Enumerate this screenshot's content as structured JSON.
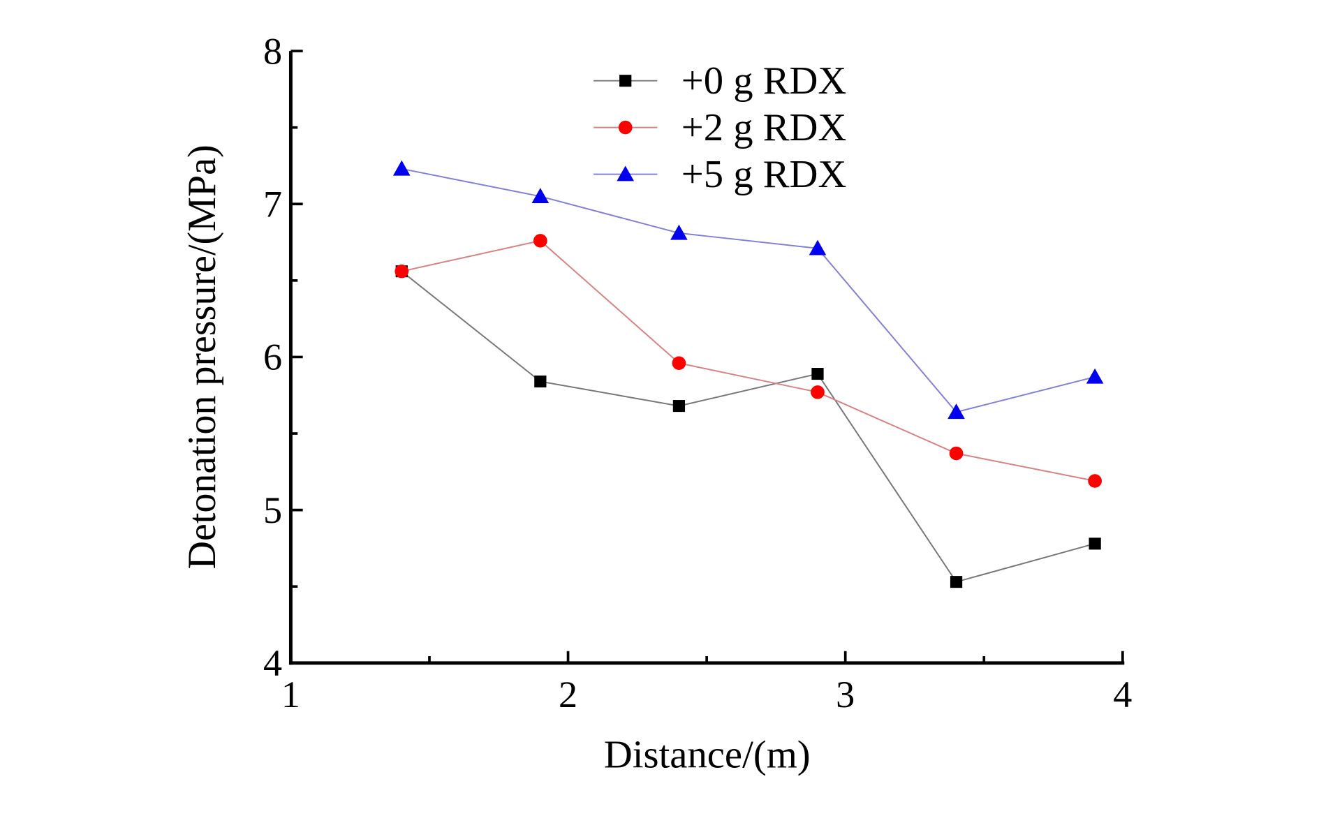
{
  "chart_data": {
    "type": "line",
    "title": "",
    "xlabel": "Distance/(m)",
    "ylabel": "Detonation pressure/(MPa)",
    "xlim": [
      1,
      4
    ],
    "ylim": [
      4,
      8
    ],
    "xticks": [
      1,
      2,
      3,
      4
    ],
    "xtick_labels": [
      "1",
      "2",
      "3",
      "4"
    ],
    "yticks": [
      4,
      5,
      6,
      7,
      8
    ],
    "ytick_labels": [
      "4",
      "5",
      "6",
      "7",
      "8"
    ],
    "grid": false,
    "legend_position": "top-center",
    "x": [
      1.4,
      1.9,
      2.4,
      2.9,
      3.4,
      3.9
    ],
    "series": [
      {
        "name": "+0 g RDX",
        "marker": "square",
        "color": "#000000",
        "line_color": "#777777",
        "values": [
          6.56,
          5.84,
          5.68,
          5.89,
          4.53,
          4.78
        ]
      },
      {
        "name": "+2 g RDX",
        "marker": "circle",
        "color": "#ff0000",
        "line_color": "#d98080",
        "values": [
          6.56,
          6.76,
          5.96,
          5.77,
          5.37,
          5.19
        ]
      },
      {
        "name": "+5 g RDX",
        "marker": "triangle",
        "color": "#0000ee",
        "line_color": "#8080d9",
        "values": [
          7.23,
          7.05,
          6.81,
          6.71,
          5.64,
          5.87
        ]
      }
    ]
  }
}
